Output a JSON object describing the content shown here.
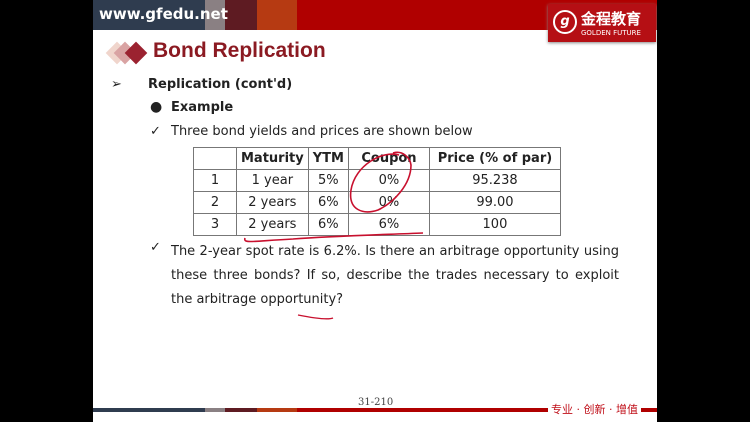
{
  "header": {
    "url": "www.gfedu.net",
    "logo_cn": "金程教育",
    "logo_en": "GOLDEN FUTURE",
    "logo_mark": "g"
  },
  "title": "Bond Replication",
  "bullet1": {
    "icon": "arrowhead-bullet",
    "text": "Replication (cont'd)"
  },
  "bullet2": {
    "icon": "dot-bullet",
    "text": "Example"
  },
  "check1": {
    "icon": "checkmark",
    "text": "Three bond yields and prices are shown below"
  },
  "table": {
    "headers": [
      "",
      "Maturity",
      "YTM",
      "Coupon",
      "Price (% of par)"
    ],
    "rows": [
      [
        "1",
        "1 year",
        "5%",
        "0%",
        "95.238"
      ],
      [
        "2",
        "2 years",
        "6%",
        "0%",
        "99.00"
      ],
      [
        "3",
        "2 years",
        "6%",
        "6%",
        "100"
      ]
    ]
  },
  "check2": {
    "icon": "checkmark",
    "text": "The 2-year spot rate is 6.2%. Is there an arbitrage opportunity using these three bonds? If so, describe the trades necessary to exploit the arbitrage opportunity?"
  },
  "footer": {
    "page": "31-210",
    "slogan": "专业 · 创新 · 增值"
  },
  "colors": {
    "brand_red": "#b00000",
    "title": "#8b1a22",
    "annotation": "#c8102e"
  }
}
